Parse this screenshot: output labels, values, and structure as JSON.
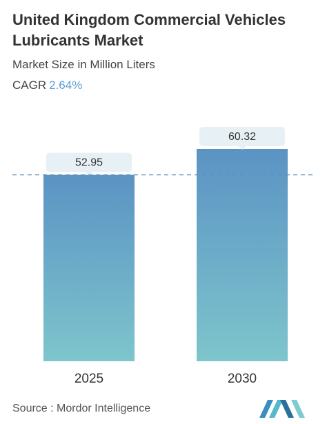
{
  "header": {
    "title": "United Kingdom Commercial Vehicles Lubricants Market",
    "subtitle": "Market Size in Million Liters",
    "cagr_label": "CAGR",
    "cagr_value": "2.64%"
  },
  "footer": {
    "source": "Source :  Mordor Intelligence",
    "logo_icon": "mordor-intelligence-logo-icon"
  },
  "colors": {
    "bar_top": "#5b93c4",
    "bar_bottom": "#7ec5cc",
    "label_box": "#e7f0f4",
    "reference_line": "#5b8fb9",
    "cagr_accent": "#5b9bd5"
  },
  "chart_data": {
    "type": "bar",
    "categories": [
      "2025",
      "2030"
    ],
    "values": [
      52.95,
      60.32
    ],
    "value_labels": [
      "52.95",
      "60.32"
    ],
    "ylim": [
      0,
      60.32
    ],
    "reference_line": 52.95,
    "grid": false
  }
}
